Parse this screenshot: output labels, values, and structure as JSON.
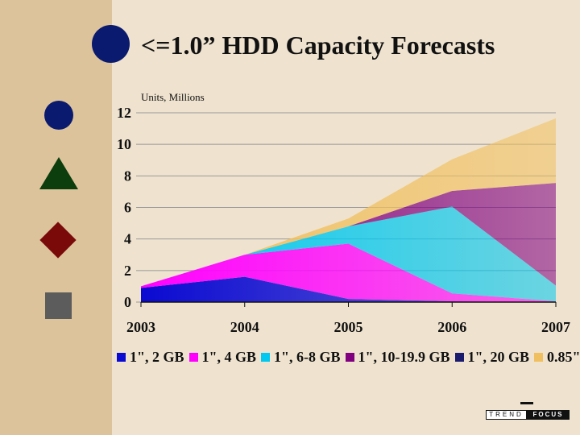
{
  "slide": {
    "title": "<=1.0” HDD Capacity Forecasts",
    "logo": {
      "left": "TREND",
      "right": "FOCUS"
    }
  },
  "decorations": [
    "circle-bullet",
    "triangle-bullet",
    "diamond-bullet",
    "square-bullet"
  ],
  "colors": {
    "background": "#efe3cf",
    "side_band": "#dcc39b",
    "navy": "#0a1a6e",
    "green": "#0c3d0c",
    "maroon": "#7a0a0a",
    "gray": "#5c5c5c"
  },
  "chart_data": {
    "type": "area",
    "stacked": true,
    "title": "",
    "ylabel": "Units, Millions",
    "xlabel": "",
    "x": [
      "2003",
      "2004",
      "2005",
      "2006",
      "2007"
    ],
    "ylim": [
      0,
      12
    ],
    "yticks": [
      0,
      2,
      4,
      6,
      8,
      10,
      12
    ],
    "grid": true,
    "legend_position": "bottom",
    "series": [
      {
        "name": "1\", 2 GB",
        "color": "#0a0ad2",
        "values": [
          0.9,
          1.6,
          0.2,
          0.05,
          0.0
        ]
      },
      {
        "name": "1\", 4 GB",
        "color": "#ff00ff",
        "values": [
          0.1,
          1.4,
          3.5,
          0.5,
          0.05
        ]
      },
      {
        "name": "1\", 6-8 GB",
        "color": "#00c8f0",
        "values": [
          0.0,
          0.0,
          1.1,
          5.5,
          1.0
        ]
      },
      {
        "name": "1\", 10-19.9 GB",
        "color": "#800080",
        "values": [
          0.0,
          0.0,
          0.0,
          1.0,
          6.5
        ]
      },
      {
        "name": "1\", 20 GB",
        "color": "#1a1a6e",
        "values": [
          0.0,
          0.0,
          0.0,
          0.0,
          0.0
        ]
      },
      {
        "name": "0.85\"",
        "color": "#f0c060",
        "values": [
          0.0,
          0.0,
          0.5,
          2.0,
          4.1
        ]
      }
    ]
  }
}
